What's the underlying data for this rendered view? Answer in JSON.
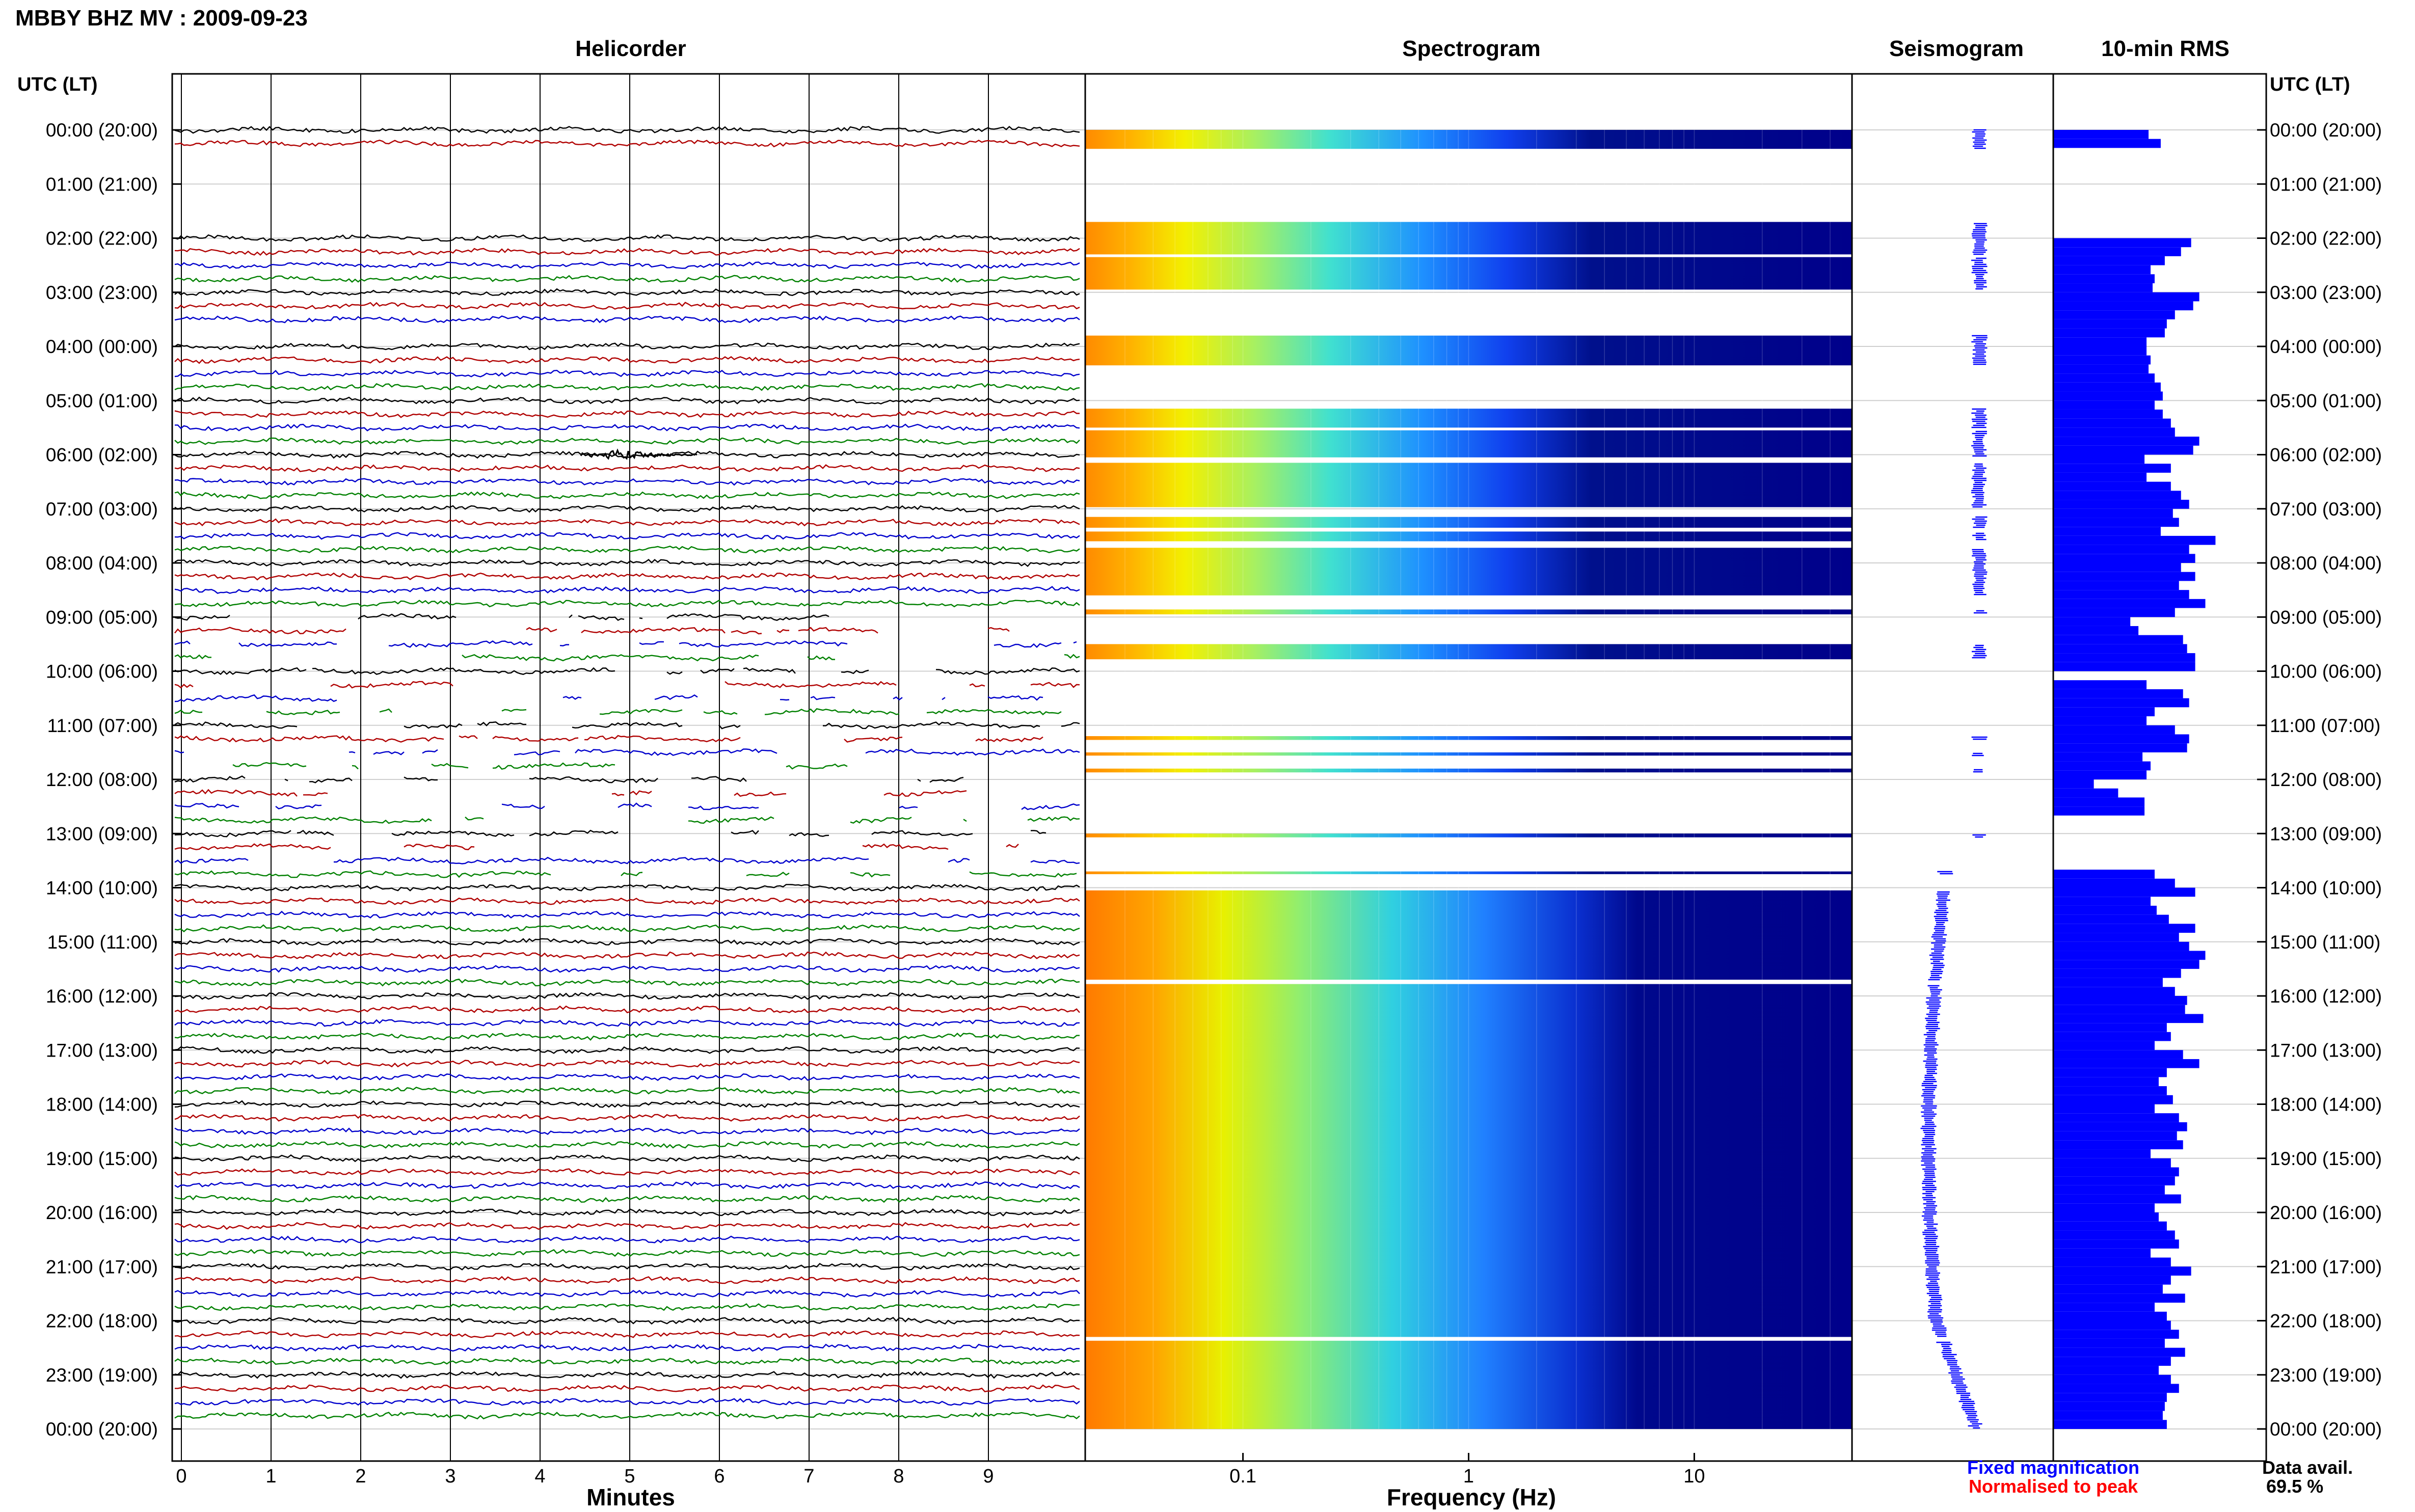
{
  "header": {
    "title": "MBBY BHZ MV : 2009-09-23"
  },
  "panels": {
    "helicorder": "Helicorder",
    "spectrogram": "Spectrogram",
    "seismogram": "Seismogram",
    "rms": "10-min RMS"
  },
  "axis": {
    "time_header_left": "UTC (LT)",
    "time_header_right": "UTC (LT)",
    "minutes_label": "Minutes",
    "frequency_label": "Frequency (Hz)"
  },
  "footer": {
    "fixed_magnification": "Fixed magnification",
    "normalised_to_peak": "Normalised to peak",
    "data_avail_label": "Data avail.",
    "data_avail_value": "69.5 %"
  },
  "colors": {
    "trace_cycle": [
      "#000000",
      "#b00000",
      "#0000cc",
      "#008000"
    ],
    "rms_bar": "#0000ff",
    "seismogram": "#0000ff",
    "fixed_text": "#0000ff",
    "normalised_text": "#ff0000"
  },
  "chart_data": {
    "type": "heatmap",
    "time_labels": [
      "00:00 (20:00)",
      "01:00 (21:00)",
      "02:00 (22:00)",
      "03:00 (23:00)",
      "04:00 (00:00)",
      "05:00 (01:00)",
      "06:00 (02:00)",
      "07:00 (03:00)",
      "08:00 (04:00)",
      "09:00 (05:00)",
      "10:00 (06:00)",
      "11:00 (07:00)",
      "12:00 (08:00)",
      "13:00 (09:00)",
      "14:00 (10:00)",
      "15:00 (11:00)",
      "16:00 (12:00)",
      "17:00 (13:00)",
      "18:00 (14:00)",
      "19:00 (15:00)",
      "20:00 (16:00)",
      "21:00 (17:00)",
      "22:00 (18:00)",
      "23:00 (19:00)",
      "00:00 (20:00)"
    ],
    "minutes_ticks": [
      "0",
      "1",
      "2",
      "3",
      "4",
      "5",
      "6",
      "7",
      "8",
      "9"
    ],
    "frequency_ticks": [
      "0.1",
      "1",
      "10"
    ],
    "frequency_range_hz": [
      0.02,
      50
    ],
    "frequency_scale": "log",
    "data_availability_percent": 69.5,
    "rms_10min": [
      0.47,
      0.53,
      -1,
      -1,
      -1,
      -1,
      -1,
      -1,
      -1,
      -1,
      -1,
      -1,
      0.68,
      0.63,
      0.55,
      0.48,
      0.5,
      0.49,
      0.72,
      0.69,
      0.6,
      0.56,
      0.55,
      0.46,
      0.46,
      0.48,
      0.47,
      0.5,
      0.53,
      0.54,
      0.5,
      0.54,
      0.58,
      0.6,
      0.72,
      0.69,
      0.45,
      0.58,
      0.46,
      0.58,
      0.63,
      0.67,
      0.59,
      0.62,
      0.53,
      0.8,
      0.67,
      0.7,
      0.63,
      0.7,
      0.62,
      0.67,
      0.75,
      0.6,
      0.38,
      0.42,
      0.64,
      0.66,
      0.7,
      0.7,
      -1,
      0.46,
      0.64,
      0.67,
      0.5,
      0.46,
      0.6,
      0.67,
      0.66,
      0.44,
      0.48,
      0.46,
      0.2,
      0.32,
      0.45,
      0.45,
      -1,
      -1,
      -1,
      -1,
      -1,
      -1,
      0.5,
      0.6,
      0.7,
      0.48,
      0.51,
      0.57,
      0.7,
      0.62,
      0.67,
      0.75,
      0.72,
      0.63,
      0.54,
      0.6,
      0.66,
      0.65,
      0.74,
      0.56,
      0.58,
      0.5,
      0.64,
      0.72,
      0.56,
      0.52,
      0.56,
      0.59,
      0.5,
      0.62,
      0.66,
      0.61,
      0.64,
      0.48,
      0.58,
      0.62,
      0.6,
      0.55,
      0.63,
      0.5,
      0.52,
      0.56,
      0.6,
      0.62,
      0.48,
      0.58,
      0.68,
      0.58,
      0.54,
      0.65,
      0.5,
      0.56,
      0.58,
      0.62,
      0.55,
      0.65,
      0.58,
      0.52,
      0.58,
      0.62,
      0.56,
      0.55,
      0.54,
      0.56
    ]
  }
}
